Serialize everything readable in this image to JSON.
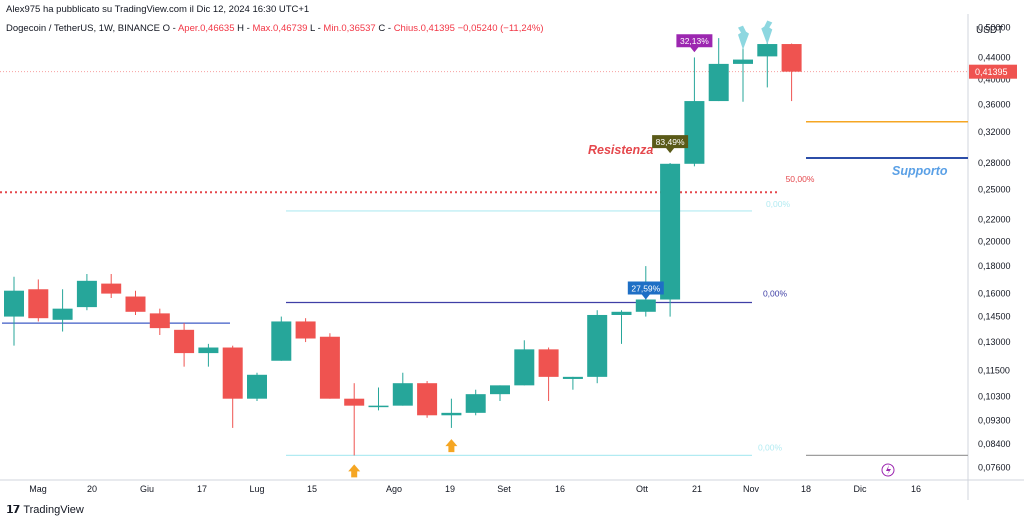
{
  "header": {
    "published": "Alex975 ha pubblicato su TradingView.com il Dic 12, 2024 16:30 UTC+1",
    "symbol": "Dogecoin / TetherUS, 1W, BINANCE",
    "open_label": "O",
    "open_value": "Aper.0,46635",
    "high_label": "H",
    "high_value": "Max.0,46739",
    "low_label": "L",
    "low_value": "Min.0,36537",
    "close_label": "C",
    "close_value": "Chius.0,41395",
    "change": "−0,05240 (−11,24%)"
  },
  "footer": {
    "brand": "TradingView"
  },
  "colors": {
    "up": "#26a69a",
    "down": "#ef5350",
    "resistance": "#e5484d",
    "support": "#2c4ea8",
    "fib_light": "#b2ebf2",
    "fib_dark": "#3f3fa6",
    "orange_line": "#f5a623",
    "arrow_orange": "#f5a623",
    "arrow_cyan": "#8dd7e0"
  },
  "chart_data": {
    "type": "candlestick",
    "y_scale": "log",
    "y_unit": "USDT",
    "y_ticks": [
      "0,07600",
      "0,08400",
      "0,09300",
      "0,10300",
      "0,11500",
      "0,13000",
      "0,14500",
      "0,16000",
      "0,18000",
      "0,20000",
      "0,22000",
      "0,25000",
      "0,28000",
      "0,32000",
      "0,36000",
      "0,40000",
      "0,44000",
      "0,50000"
    ],
    "x_ticks": [
      "Mag",
      "20",
      "Giu",
      "17",
      "Lug",
      "15",
      "Ago",
      "19",
      "Set",
      "16",
      "Ott",
      "21",
      "Nov",
      "18",
      "Dic",
      "16"
    ],
    "last_price_label": "0,41395",
    "candles": [
      {
        "o": 0.145,
        "h": 0.172,
        "l": 0.128,
        "c": 0.162
      },
      {
        "o": 0.163,
        "h": 0.17,
        "l": 0.142,
        "c": 0.144
      },
      {
        "o": 0.143,
        "h": 0.163,
        "l": 0.136,
        "c": 0.15
      },
      {
        "o": 0.151,
        "h": 0.174,
        "l": 0.149,
        "c": 0.169
      },
      {
        "o": 0.167,
        "h": 0.174,
        "l": 0.157,
        "c": 0.16
      },
      {
        "o": 0.158,
        "h": 0.162,
        "l": 0.146,
        "c": 0.148
      },
      {
        "o": 0.147,
        "h": 0.15,
        "l": 0.134,
        "c": 0.138
      },
      {
        "o": 0.137,
        "h": 0.141,
        "l": 0.117,
        "c": 0.124
      },
      {
        "o": 0.124,
        "h": 0.129,
        "l": 0.117,
        "c": 0.127
      },
      {
        "o": 0.127,
        "h": 0.128,
        "l": 0.09,
        "c": 0.102
      },
      {
        "o": 0.102,
        "h": 0.114,
        "l": 0.101,
        "c": 0.113
      },
      {
        "o": 0.12,
        "h": 0.145,
        "l": 0.12,
        "c": 0.142
      },
      {
        "o": 0.142,
        "h": 0.144,
        "l": 0.13,
        "c": 0.132
      },
      {
        "o": 0.133,
        "h": 0.135,
        "l": 0.102,
        "c": 0.102
      },
      {
        "o": 0.102,
        "h": 0.109,
        "l": 0.08,
        "c": 0.099
      },
      {
        "o": 0.099,
        "h": 0.107,
        "l": 0.097,
        "c": 0.099
      },
      {
        "o": 0.099,
        "h": 0.114,
        "l": 0.099,
        "c": 0.109
      },
      {
        "o": 0.109,
        "h": 0.11,
        "l": 0.094,
        "c": 0.095
      },
      {
        "o": 0.095,
        "h": 0.102,
        "l": 0.09,
        "c": 0.096
      },
      {
        "o": 0.096,
        "h": 0.106,
        "l": 0.095,
        "c": 0.104
      },
      {
        "o": 0.104,
        "h": 0.108,
        "l": 0.101,
        "c": 0.108
      },
      {
        "o": 0.108,
        "h": 0.131,
        "l": 0.108,
        "c": 0.126
      },
      {
        "o": 0.126,
        "h": 0.127,
        "l": 0.101,
        "c": 0.112
      },
      {
        "o": 0.111,
        "h": 0.112,
        "l": 0.106,
        "c": 0.112
      },
      {
        "o": 0.112,
        "h": 0.149,
        "l": 0.109,
        "c": 0.146
      },
      {
        "o": 0.146,
        "h": 0.149,
        "l": 0.129,
        "c": 0.148
      },
      {
        "o": 0.148,
        "h": 0.18,
        "l": 0.145,
        "c": 0.156
      },
      {
        "o": 0.156,
        "h": 0.28,
        "l": 0.145,
        "c": 0.279
      },
      {
        "o": 0.279,
        "h": 0.44,
        "l": 0.276,
        "c": 0.365
      },
      {
        "o": 0.365,
        "h": 0.478,
        "l": 0.365,
        "c": 0.428
      },
      {
        "o": 0.428,
        "h": 0.484,
        "l": 0.364,
        "c": 0.436
      },
      {
        "o": 0.442,
        "h": 0.484,
        "l": 0.387,
        "c": 0.466
      },
      {
        "o": 0.466,
        "h": 0.467,
        "l": 0.365,
        "c": 0.414
      }
    ],
    "lines": [
      {
        "name": "resistance",
        "value": 0.247,
        "label": "Resistenza"
      },
      {
        "name": "support",
        "value": 0.286,
        "label": "Supporto"
      },
      {
        "name": "range-low-blue",
        "value": 0.141
      },
      {
        "name": "orange",
        "value": 0.334
      },
      {
        "name": "fib-top",
        "value": 0.228
      },
      {
        "name": "fib-mid",
        "value": 0.154
      },
      {
        "name": "fib-bottom",
        "value": 0.08
      },
      {
        "name": "last-price-dotted",
        "value": 0.414
      }
    ],
    "fib_labels": {
      "top": "0,00%",
      "mid": "0,00%",
      "bottom": "0,00%",
      "fifty": "50,00%"
    },
    "badges": [
      {
        "candle": 26,
        "text": "27,59%",
        "color": "#1e6fc5",
        "at": 0.156
      },
      {
        "candle": 27,
        "text": "83,49%",
        "color": "#5a5a18",
        "at": 0.292
      },
      {
        "candle": 28,
        "text": "32,13%",
        "color": "#9c27b0",
        "at": 0.45
      }
    ],
    "arrows_up": [
      {
        "candle": 14,
        "at": 0.079
      },
      {
        "candle": 18,
        "at": 0.088
      }
    ],
    "arrows_down": [
      {
        "candle": 30,
        "at": 0.455
      },
      {
        "candle": 31,
        "at": 0.465
      }
    ]
  }
}
